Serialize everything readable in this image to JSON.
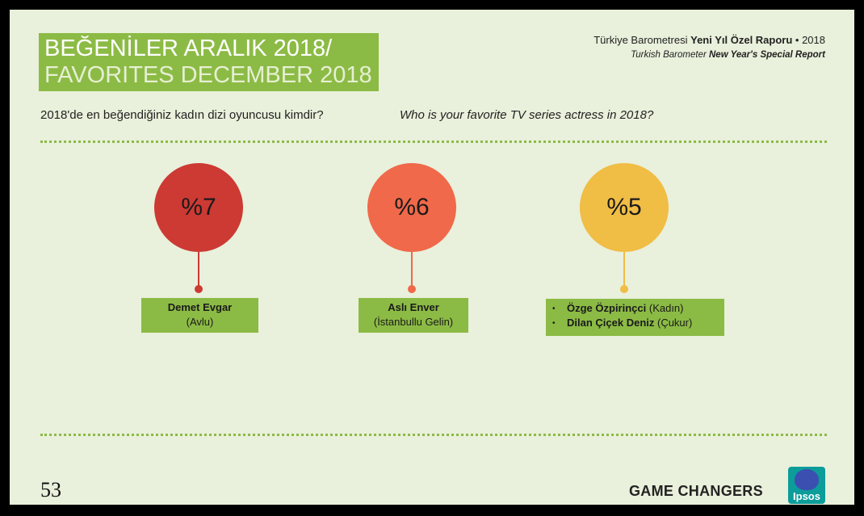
{
  "title": {
    "line1": "BEĞENİLER ARALIK 2018/",
    "line2": "FAVORITES DECEMBER 2018"
  },
  "report": {
    "tr_prefix": "Türkiye Barometresi ",
    "tr_bold": "Yeni Yıl Özel Raporu",
    "tr_suffix": " • 2018",
    "en_prefix": "Turkish Barometer ",
    "en_bold": "New Year's Special Report"
  },
  "question": {
    "tr": "2018'de en beğendiğiniz kadın dizi oyuncusu kimdir?",
    "en": "Who is your favorite TV series actress in 2018?"
  },
  "results": [
    {
      "percent": "%7",
      "name": "Demet Evgar",
      "show": "(Avlu)",
      "color": "#cc3a33"
    },
    {
      "percent": "%6",
      "name": "Aslı Enver",
      "show": "(İstanbullu Gelin)",
      "color": "#f0694a"
    },
    {
      "percent": "%5",
      "color": "#f0bd45",
      "items": [
        {
          "name": "Özge Özpirinçci",
          "show": " (Kadın)"
        },
        {
          "name": "Dilan Çiçek Deniz",
          "show": " (Çukur)"
        }
      ]
    }
  ],
  "footer": {
    "page_number": "53",
    "tagline": "GAME CHANGERS",
    "logo_text": "Ipsos"
  }
}
